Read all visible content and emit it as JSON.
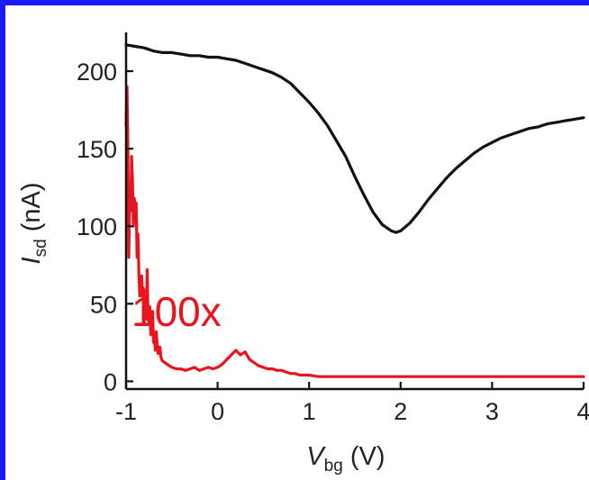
{
  "colors": {
    "frame": "#1a1aff",
    "series_black": "#111111",
    "series_red": "#e8141e",
    "axis": "#111111"
  },
  "chart_data": {
    "type": "line",
    "title": "",
    "xlabel": {
      "main": "V",
      "sub": "bg",
      "unit": " (V)"
    },
    "ylabel": {
      "main": "I",
      "sub": "sd",
      "unit": " (nA)"
    },
    "xlim": [
      -1,
      4
    ],
    "ylim": [
      -5,
      225
    ],
    "xticks": [
      -1,
      0,
      1,
      2,
      3,
      4
    ],
    "xtick_labels": [
      "-1",
      "0",
      "1",
      "2",
      "3",
      "4"
    ],
    "yticks": [
      0,
      50,
      100,
      150,
      200
    ],
    "ytick_labels": [
      "0",
      "50",
      "100",
      "150",
      "200"
    ],
    "grid": false,
    "legend": "none",
    "annotations": [
      {
        "text": "100x",
        "x": -0.45,
        "y": 45,
        "color": "#e8141e"
      }
    ],
    "series": [
      {
        "color": "#111111",
        "x": [
          -1.0,
          -0.9,
          -0.8,
          -0.7,
          -0.6,
          -0.5,
          -0.4,
          -0.3,
          -0.2,
          -0.1,
          0.0,
          0.1,
          0.2,
          0.3,
          0.4,
          0.5,
          0.6,
          0.7,
          0.8,
          0.9,
          1.0,
          1.1,
          1.2,
          1.3,
          1.4,
          1.5,
          1.6,
          1.7,
          1.8,
          1.9,
          1.95,
          2.0,
          2.1,
          2.2,
          2.3,
          2.4,
          2.5,
          2.6,
          2.7,
          2.8,
          2.9,
          3.0,
          3.1,
          3.2,
          3.3,
          3.4,
          3.5,
          3.6,
          3.7,
          3.8,
          3.9,
          4.0
        ],
        "y": [
          217,
          216,
          215,
          213,
          212,
          212,
          211,
          210,
          210,
          209,
          209,
          208,
          207,
          205,
          203,
          201,
          199,
          196,
          192,
          186,
          180,
          173,
          165,
          155,
          145,
          132,
          120,
          109,
          101,
          97,
          96,
          97,
          102,
          109,
          117,
          124,
          131,
          137,
          142,
          147,
          151,
          154,
          157,
          159,
          161,
          163,
          164,
          166,
          167,
          168,
          169,
          170
        ]
      },
      {
        "color": "#e8141e",
        "x": [
          -1.0,
          -0.99,
          -0.98,
          -0.97,
          -0.96,
          -0.95,
          -0.94,
          -0.93,
          -0.92,
          -0.91,
          -0.9,
          -0.89,
          -0.88,
          -0.87,
          -0.86,
          -0.85,
          -0.84,
          -0.83,
          -0.82,
          -0.81,
          -0.8,
          -0.79,
          -0.78,
          -0.77,
          -0.76,
          -0.75,
          -0.74,
          -0.73,
          -0.72,
          -0.71,
          -0.7,
          -0.69,
          -0.68,
          -0.67,
          -0.66,
          -0.65,
          -0.64,
          -0.63,
          -0.62,
          -0.61,
          -0.6,
          -0.55,
          -0.5,
          -0.45,
          -0.4,
          -0.35,
          -0.3,
          -0.25,
          -0.2,
          -0.15,
          -0.1,
          -0.05,
          0.0,
          0.05,
          0.1,
          0.15,
          0.2,
          0.25,
          0.3,
          0.35,
          0.4,
          0.45,
          0.5,
          0.55,
          0.6,
          0.65,
          0.7,
          0.75,
          0.8,
          0.85,
          0.9,
          0.95,
          1.0,
          1.1,
          1.2,
          1.4,
          1.6,
          1.8,
          2.0,
          2.2,
          2.4,
          2.6,
          2.8,
          3.0,
          3.2,
          3.4,
          3.6,
          3.8,
          4.0
        ],
        "y": [
          165,
          190,
          150,
          80,
          125,
          110,
          145,
          130,
          100,
          118,
          112,
          115,
          80,
          95,
          70,
          55,
          62,
          68,
          55,
          60,
          50,
          58,
          40,
          72,
          42,
          38,
          48,
          30,
          35,
          45,
          25,
          28,
          20,
          32,
          24,
          18,
          20,
          22,
          16,
          14,
          13,
          11,
          9,
          8,
          8,
          7,
          8,
          9,
          7,
          8,
          9,
          8,
          9,
          11,
          14,
          17,
          20,
          17,
          19,
          14,
          12,
          10,
          9,
          8,
          8,
          7,
          7,
          6,
          5,
          5,
          4,
          4,
          4,
          3,
          3,
          3,
          3,
          3,
          3,
          3,
          3,
          3,
          3,
          3,
          3,
          3,
          3,
          3,
          3
        ]
      }
    ]
  }
}
